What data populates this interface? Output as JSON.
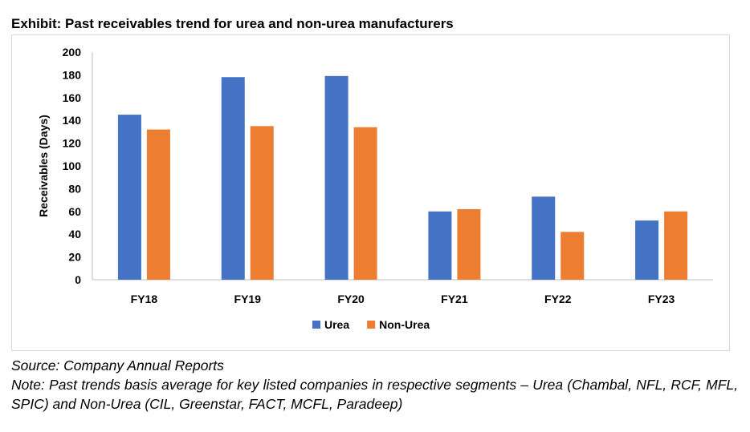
{
  "exhibit_title": "Exhibit: Past receivables trend for urea and non-urea manufacturers",
  "source": "Source: Company Annual Reports",
  "note": "Note: Past trends basis average for key listed companies in respective segments – Urea (Chambal, NFL, RCF, MFL, SPIC) and Non-Urea (CIL, Greenstar, FACT, MCFL, Paradeep)",
  "colors": {
    "urea": "#4472C4",
    "non_urea": "#ED7D31",
    "axis": "#bfbfbf",
    "text": "#000000"
  },
  "chart_data": {
    "type": "bar",
    "title": "",
    "xlabel": "",
    "ylabel": "Receivables (Days)",
    "categories": [
      "FY18",
      "FY19",
      "FY20",
      "FY21",
      "FY22",
      "FY23"
    ],
    "series": [
      {
        "name": "Urea",
        "color": "#4472C4",
        "values": [
          145,
          178,
          179,
          60,
          73,
          52
        ]
      },
      {
        "name": "Non-Urea",
        "color": "#ED7D31",
        "values": [
          132,
          135,
          134,
          62,
          42,
          60
        ]
      }
    ],
    "ylim": [
      0,
      200
    ],
    "yticks": [
      "0",
      "20",
      "40",
      "60",
      "80",
      "100",
      "120",
      "140",
      "160",
      "180",
      "200"
    ],
    "grid": false,
    "legend_position": "bottom"
  }
}
